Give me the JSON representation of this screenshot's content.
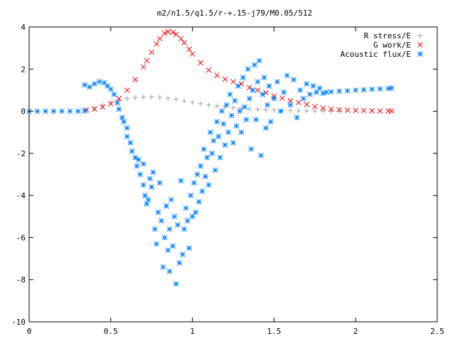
{
  "chart_data": {
    "type": "scatter",
    "title": "m2/n1.5/q1.5/r-+.15-j79/M0.05/512",
    "xlabel": "",
    "ylabel": "",
    "xlim": [
      0,
      2.5
    ],
    "ylim": [
      -10,
      4
    ],
    "x_ticks": [
      0,
      0.5,
      1,
      1.5,
      2,
      2.5
    ],
    "x_tick_labels": [
      "0",
      "0.5",
      "1",
      "1.5",
      "2",
      "2.5"
    ],
    "y_ticks": [
      -10,
      -8,
      -6,
      -4,
      -2,
      0,
      2,
      4
    ],
    "y_tick_labels": [
      "-10",
      "-8",
      "-6",
      "-4",
      "-2",
      "0",
      "2",
      "4"
    ],
    "grid": false,
    "legend_position": "top-right",
    "series": [
      {
        "name": "R stress/E",
        "marker": "plus",
        "color": "#a0a0a0",
        "points": [
          [
            0.35,
            0.05
          ],
          [
            0.4,
            0.15
          ],
          [
            0.45,
            0.28
          ],
          [
            0.5,
            0.42
          ],
          [
            0.55,
            0.52
          ],
          [
            0.6,
            0.6
          ],
          [
            0.65,
            0.64
          ],
          [
            0.7,
            0.67
          ],
          [
            0.75,
            0.68
          ],
          [
            0.8,
            0.66
          ],
          [
            0.85,
            0.62
          ],
          [
            0.9,
            0.56
          ],
          [
            0.95,
            0.49
          ],
          [
            1.0,
            0.42
          ],
          [
            1.05,
            0.36
          ],
          [
            1.1,
            0.3
          ],
          [
            1.15,
            0.25
          ],
          [
            1.2,
            0.21
          ],
          [
            1.25,
            0.17
          ],
          [
            1.3,
            0.14
          ],
          [
            1.35,
            0.11
          ],
          [
            1.4,
            0.09
          ],
          [
            1.45,
            0.07
          ],
          [
            1.5,
            0.05
          ],
          [
            1.55,
            0.04
          ],
          [
            1.6,
            0.03
          ],
          [
            1.65,
            0.02
          ],
          [
            1.7,
            0.02
          ],
          [
            1.75,
            0.01
          ],
          [
            1.8,
            0.01
          ],
          [
            1.85,
            0.0
          ],
          [
            1.9,
            0.0
          ]
        ]
      },
      {
        "name": "G work/E",
        "marker": "cross",
        "color": "#ff0000",
        "points": [
          [
            0.35,
            0.05
          ],
          [
            0.4,
            0.1
          ],
          [
            0.45,
            0.2
          ],
          [
            0.5,
            0.35
          ],
          [
            0.55,
            0.6
          ],
          [
            0.6,
            1.0
          ],
          [
            0.65,
            1.5
          ],
          [
            0.7,
            2.1
          ],
          [
            0.72,
            2.4
          ],
          [
            0.75,
            2.8
          ],
          [
            0.78,
            3.2
          ],
          [
            0.8,
            3.45
          ],
          [
            0.83,
            3.7
          ],
          [
            0.85,
            3.78
          ],
          [
            0.88,
            3.75
          ],
          [
            0.9,
            3.65
          ],
          [
            0.93,
            3.45
          ],
          [
            0.95,
            3.25
          ],
          [
            0.98,
            2.95
          ],
          [
            1.0,
            2.72
          ],
          [
            1.05,
            2.3
          ],
          [
            1.1,
            1.95
          ],
          [
            1.15,
            1.7
          ],
          [
            1.2,
            1.52
          ],
          [
            1.25,
            1.4
          ],
          [
            1.3,
            1.3
          ],
          [
            1.35,
            1.12
          ],
          [
            1.4,
            1.0
          ],
          [
            1.45,
            0.88
          ],
          [
            1.5,
            0.72
          ],
          [
            1.55,
            0.62
          ],
          [
            1.6,
            0.5
          ],
          [
            1.65,
            0.42
          ],
          [
            1.7,
            0.32
          ],
          [
            1.75,
            0.22
          ],
          [
            1.8,
            0.15
          ],
          [
            1.85,
            0.1
          ],
          [
            1.9,
            0.07
          ],
          [
            1.95,
            0.05
          ],
          [
            2.0,
            0.04
          ],
          [
            2.05,
            0.03
          ],
          [
            2.1,
            0.02
          ],
          [
            2.15,
            0.01
          ],
          [
            2.2,
            0.01
          ],
          [
            2.22,
            0.01
          ]
        ]
      },
      {
        "name": "Acoustic flux/E",
        "marker": "star",
        "color": "#0080ff",
        "points": [
          [
            0.0,
            0.0
          ],
          [
            0.05,
            0.0
          ],
          [
            0.1,
            0.0
          ],
          [
            0.15,
            0.0
          ],
          [
            0.2,
            0.0
          ],
          [
            0.25,
            0.0
          ],
          [
            0.3,
            0.0
          ],
          [
            0.34,
            0.02
          ],
          [
            0.34,
            1.25
          ],
          [
            0.37,
            1.15
          ],
          [
            0.4,
            1.3
          ],
          [
            0.43,
            1.4
          ],
          [
            0.46,
            1.35
          ],
          [
            0.48,
            1.2
          ],
          [
            0.5,
            1.05
          ],
          [
            0.52,
            0.8
          ],
          [
            0.54,
            0.4
          ],
          [
            0.55,
            0.1
          ],
          [
            0.57,
            -0.3
          ],
          [
            0.58,
            -0.5
          ],
          [
            0.6,
            -0.8
          ],
          [
            0.6,
            -1.2
          ],
          [
            0.62,
            -1.5
          ],
          [
            0.63,
            -1.9
          ],
          [
            0.65,
            -2.2
          ],
          [
            0.66,
            -2.6
          ],
          [
            0.67,
            -2.3
          ],
          [
            0.68,
            -3.0
          ],
          [
            0.7,
            -3.5
          ],
          [
            0.7,
            -2.5
          ],
          [
            0.71,
            -4.0
          ],
          [
            0.72,
            -4.4
          ],
          [
            0.73,
            -4.2
          ],
          [
            0.74,
            -3.2
          ],
          [
            0.75,
            -3.6
          ],
          [
            0.76,
            -2.9
          ],
          [
            0.77,
            -5.6
          ],
          [
            0.78,
            -6.3
          ],
          [
            0.79,
            -4.8
          ],
          [
            0.8,
            -3.4
          ],
          [
            0.81,
            -5.2
          ],
          [
            0.82,
            -7.4
          ],
          [
            0.83,
            -6.0
          ],
          [
            0.84,
            -4.5
          ],
          [
            0.85,
            -6.6
          ],
          [
            0.86,
            -5.6
          ],
          [
            0.86,
            -7.6
          ],
          [
            0.87,
            -4.2
          ],
          [
            0.88,
            -6.4
          ],
          [
            0.89,
            -5.0
          ],
          [
            0.9,
            -8.2
          ],
          [
            0.91,
            -5.4
          ],
          [
            0.92,
            -7.2
          ],
          [
            0.93,
            -3.3
          ],
          [
            0.94,
            -6.8
          ],
          [
            0.95,
            -5.6
          ],
          [
            0.96,
            -4.6
          ],
          [
            0.97,
            -5.2
          ],
          [
            0.98,
            -6.5
          ],
          [
            0.99,
            -4.0
          ],
          [
            1.0,
            -5.0
          ],
          [
            1.01,
            -3.4
          ],
          [
            1.02,
            -4.8
          ],
          [
            1.03,
            -3.0
          ],
          [
            1.04,
            -4.3
          ],
          [
            1.05,
            -2.6
          ],
          [
            1.06,
            -3.8
          ],
          [
            1.07,
            -1.8
          ],
          [
            1.08,
            -3.1
          ],
          [
            1.09,
            -2.2
          ],
          [
            1.1,
            -3.5
          ],
          [
            1.11,
            -1.0
          ],
          [
            1.12,
            -2.0
          ],
          [
            1.13,
            -1.4
          ],
          [
            1.14,
            -2.8
          ],
          [
            1.15,
            -0.5
          ],
          [
            1.16,
            -1.2
          ],
          [
            1.17,
            -2.2
          ],
          [
            1.18,
            0.0
          ],
          [
            1.19,
            -0.6
          ],
          [
            1.2,
            -1.6
          ],
          [
            1.21,
            0.3
          ],
          [
            1.22,
            -1.0
          ],
          [
            1.23,
            0.8
          ],
          [
            1.24,
            -0.2
          ],
          [
            1.25,
            -1.5
          ],
          [
            1.26,
            0.5
          ],
          [
            1.27,
            -0.7
          ],
          [
            1.28,
            1.2
          ],
          [
            1.29,
            0.0
          ],
          [
            1.3,
            -1.0
          ],
          [
            1.31,
            1.6
          ],
          [
            1.32,
            0.2
          ],
          [
            1.33,
            -0.4
          ],
          [
            1.34,
            2.0
          ],
          [
            1.35,
            0.6
          ],
          [
            1.36,
            -1.8
          ],
          [
            1.37,
            1.0
          ],
          [
            1.38,
            2.2
          ],
          [
            1.39,
            -0.4
          ],
          [
            1.4,
            1.4
          ],
          [
            1.41,
            2.4
          ],
          [
            1.42,
            -2.1
          ],
          [
            1.43,
            0.8
          ],
          [
            1.44,
            1.6
          ],
          [
            1.45,
            -0.8
          ],
          [
            1.46,
            0.3
          ],
          [
            1.47,
            1.2
          ],
          [
            1.48,
            -0.5
          ],
          [
            1.5,
            0.6
          ],
          [
            1.52,
            1.4
          ],
          [
            1.54,
            0.0
          ],
          [
            1.56,
            0.9
          ],
          [
            1.58,
            1.7
          ],
          [
            1.6,
            0.3
          ],
          [
            1.62,
            1.5
          ],
          [
            1.64,
            -0.3
          ],
          [
            1.66,
            1.0
          ],
          [
            1.68,
            0.6
          ],
          [
            1.7,
            1.3
          ],
          [
            1.72,
            0.8
          ],
          [
            1.74,
            1.2
          ],
          [
            1.76,
            0.9
          ],
          [
            1.78,
            1.1
          ],
          [
            1.8,
            0.85
          ],
          [
            1.82,
            0.9
          ],
          [
            1.85,
            0.92
          ],
          [
            1.9,
            0.95
          ],
          [
            1.95,
            0.97
          ],
          [
            2.0,
            1.0
          ],
          [
            2.05,
            1.02
          ],
          [
            2.1,
            1.04
          ],
          [
            2.15,
            1.06
          ],
          [
            2.2,
            1.08
          ],
          [
            2.22,
            1.1
          ]
        ]
      }
    ]
  }
}
